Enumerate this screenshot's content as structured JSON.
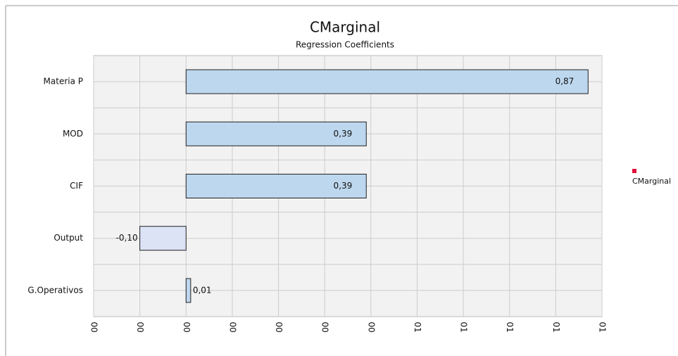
{
  "chart_data": {
    "type": "bar",
    "orientation": "horizontal",
    "title": "CMarginal",
    "subtitle": "Regression Coefficients",
    "categories": [
      "Materia P",
      "MOD",
      "CIF",
      "Output",
      "G.Operativos"
    ],
    "series": [
      {
        "name": "CMarginal",
        "color": "#bdd7ee",
        "negative_color": "#dce3f5",
        "legend_color": "#e0103a",
        "values": [
          0.87,
          0.39,
          0.39,
          -0.1,
          0.01
        ],
        "value_labels": [
          "0,87",
          "0,39",
          "0,39",
          "-0,10",
          "0,01"
        ]
      }
    ],
    "xlim": [
      -0.2,
      0.9
    ],
    "xticks": [
      {
        "value": -0.2,
        "label": "00"
      },
      {
        "value": -0.1,
        "label": "00"
      },
      {
        "value": 0,
        "label": "00"
      },
      {
        "value": 0.1,
        "label": "00"
      },
      {
        "value": 0.2,
        "label": "00"
      },
      {
        "value": 0.3,
        "label": "00"
      },
      {
        "value": 0.4,
        "label": "00"
      },
      {
        "value": 0.5,
        "label": "01"
      },
      {
        "value": 0.6,
        "label": "01"
      },
      {
        "value": 0.7,
        "label": "01"
      },
      {
        "value": 0.8,
        "label": "01"
      },
      {
        "value": 0.9,
        "label": "01"
      }
    ],
    "grid": true,
    "legend": "right"
  }
}
